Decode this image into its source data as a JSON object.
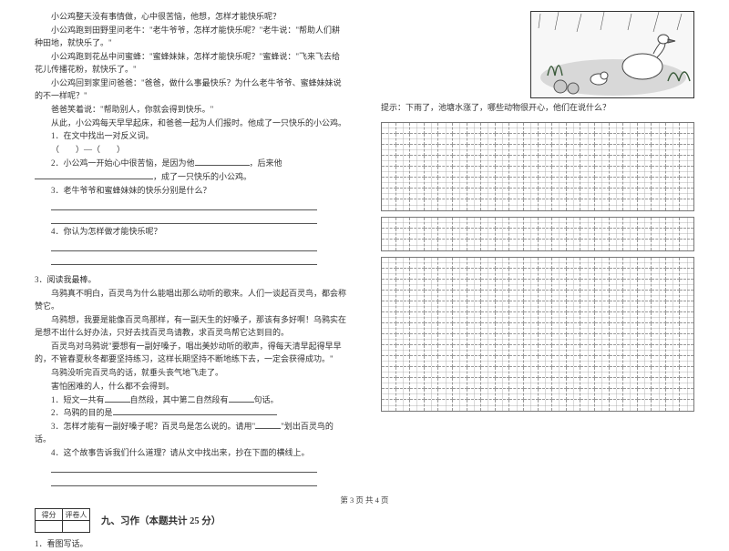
{
  "story1": {
    "p1": "小公鸡整天没有事情做，心中很苦恼，他想，怎样才能快乐呢？",
    "p2": "小公鸡跑到田野里问老牛：\"老牛爷爷，怎样才能快乐呢？\"老牛说：\"帮助人们耕种田地，就快乐了。\"",
    "p3": "小公鸡跑到花丛中问蜜蜂：\"蜜蜂妹妹，怎样才能快乐呢？\"蜜蜂说：\"飞来飞去给花儿传播花粉，就快乐了。\"",
    "p4": "小公鸡回到家里问爸爸：\"爸爸，做什么事最快乐？为什么老牛爷爷、蜜蜂妹妹说的不一样呢？\"",
    "p5": "爸爸笑着说：\"帮助别人，你就会得到快乐。\"",
    "p6": "从此，小公鸡每天早早起床，和爸爸一起为人们报时。他成了一只快乐的小公鸡。",
    "q1": "1．在文中找出一对反义词。",
    "q1_blank": "（　　）—（　　）",
    "q2_a": "2．小公鸡一开始心中很苦恼，是因为他",
    "q2_b": "，后来他",
    "q2_c": "，成了一只快乐的小公鸡。",
    "q3": "3．老牛爷爷和蜜蜂妹妹的快乐分别是什么？",
    "q4": "4．你认为怎样做才能快乐呢？"
  },
  "story2": {
    "heading": "3．阅读我最棒。",
    "p1": "乌鸦真不明白，百灵鸟为什么能唱出那么动听的歌来。人们一谈起百灵鸟，都会称赞它。",
    "p2": "乌鸦想，我要是能像百灵鸟那样，有一副天生的好嗓子，那该有多好啊！乌鸦实在是想不出什么好办法，只好去找百灵鸟请教，求百灵鸟帮它达到目的。",
    "p3": "百灵鸟对乌鸦说\"要想有一副好嗓子，唱出美妙动听的歌声，得每天清早起得早早的，不管春夏秋冬都要坚持练习，这样长期坚持不断地练下去，一定会获得成功。\"",
    "p4": "乌鸦没听完百灵鸟的话，就垂头丧气地飞走了。",
    "p5": "害怕困难的人，什么都不会得到。",
    "q1_a": "1．短文一共有",
    "q1_b": "自然段，其中第二自然段有",
    "q1_c": "句话。",
    "q2": "2．乌鸦的目的是",
    "q3_a": "3．怎样才能有一副好嗓子呢？百灵鸟是怎么说的。请用\"",
    "q3_b": "\"划出百灵鸟的话。",
    "q4": "4．这个故事告诉我们什么道理？请从文中找出来，抄在下面的横线上。"
  },
  "score": {
    "c1": "得分",
    "c2": "评卷人"
  },
  "section9": {
    "title": "九、习作（本题共计 25 分）",
    "q1": "1．看图写话。"
  },
  "right": {
    "hint": "提示：下雨了，池塘水涨了，哪些动物很开心，他们在说什么？"
  },
  "grid": {
    "cols": 22,
    "box1_rows": 8,
    "box2_rows": 3,
    "box3_rows": 14
  },
  "footer": "第 3 页  共 4 页"
}
